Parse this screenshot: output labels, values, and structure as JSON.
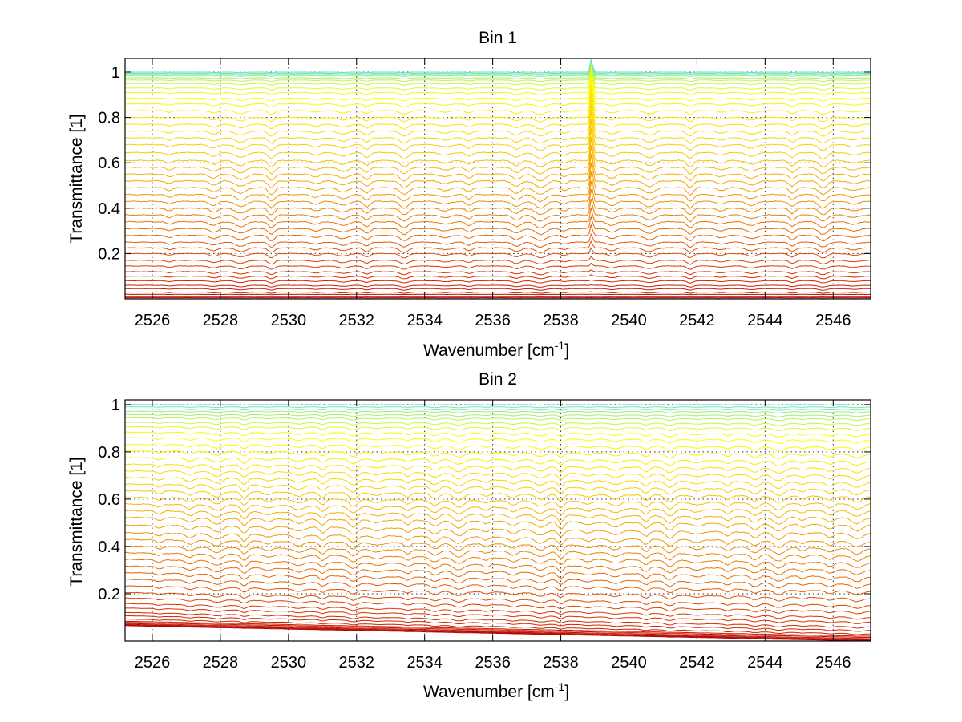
{
  "chart_data": [
    {
      "type": "line",
      "title": "Bin 1",
      "xlabel_main": "Wavenumber [cm",
      "xlabel_sup": "-1",
      "xlabel_tail": "]",
      "ylabel": "Transmittance [1]",
      "xlim": [
        2525.2,
        2547.1
      ],
      "ylim": [
        0,
        1.06
      ],
      "xticks": [
        2526,
        2528,
        2530,
        2532,
        2534,
        2536,
        2538,
        2540,
        2542,
        2544,
        2546
      ],
      "yticks": [
        0.2,
        0.4,
        0.6,
        0.8,
        1
      ],
      "ytick_labels": [
        "0.2",
        "0.4",
        "0.6",
        "0.8",
        "1"
      ],
      "grid": true,
      "legend": "none",
      "n_series": 45,
      "series_levels": [
        0.0,
        0.005,
        0.01,
        0.02,
        0.03,
        0.045,
        0.06,
        0.08,
        0.1,
        0.12,
        0.145,
        0.17,
        0.2,
        0.225,
        0.25,
        0.28,
        0.31,
        0.34,
        0.37,
        0.4,
        0.43,
        0.46,
        0.49,
        0.52,
        0.55,
        0.58,
        0.61,
        0.645,
        0.68,
        0.71,
        0.74,
        0.77,
        0.8,
        0.83,
        0.86,
        0.885,
        0.91,
        0.93,
        0.95,
        0.965,
        0.975,
        0.985,
        0.99,
        0.995,
        1.0
      ],
      "series_trend": [
        0,
        0
      ],
      "spike": {
        "x": 2538.9,
        "peak": 1.06
      },
      "absorption_lines": [
        2526.5,
        2527.8,
        2528.6,
        2529.5,
        2530.8,
        2531.6,
        2532.3,
        2533.4,
        2534.6,
        2535.3,
        2536.7,
        2537.4,
        2538.1,
        2539.5,
        2540.6,
        2541.8,
        2542.7,
        2543.6,
        2544.8,
        2545.7,
        2546.6
      ],
      "colormap": [
        "#b30000",
        "#d73000",
        "#ee7a00",
        "#f7c400",
        "#ffff00",
        "#5fe0d0"
      ]
    },
    {
      "type": "line",
      "title": "Bin 2",
      "xlabel_main": "Wavenumber [cm",
      "xlabel_sup": "-1",
      "xlabel_tail": "]",
      "ylabel": "Transmittance [1]",
      "xlim": [
        2525.2,
        2547.1
      ],
      "ylim": [
        0,
        1.02
      ],
      "xticks": [
        2526,
        2528,
        2530,
        2532,
        2534,
        2536,
        2538,
        2540,
        2542,
        2544,
        2546
      ],
      "yticks": [
        0.2,
        0.4,
        0.6,
        0.8,
        1
      ],
      "ytick_labels": [
        "0.2",
        "0.4",
        "0.6",
        "0.8",
        "1"
      ],
      "grid": true,
      "legend": "none",
      "n_series": 45,
      "series_levels": [
        0.0,
        0.003,
        0.006,
        0.01,
        0.015,
        0.02,
        0.03,
        0.045,
        0.06,
        0.08,
        0.1,
        0.125,
        0.15,
        0.18,
        0.21,
        0.24,
        0.27,
        0.3,
        0.33,
        0.36,
        0.39,
        0.42,
        0.455,
        0.49,
        0.52,
        0.55,
        0.58,
        0.61,
        0.64,
        0.67,
        0.7,
        0.73,
        0.76,
        0.79,
        0.82,
        0.85,
        0.875,
        0.9,
        0.92,
        0.94,
        0.955,
        0.97,
        0.98,
        0.99,
        1.0
      ],
      "series_trend": [
        0.065,
        0.0
      ],
      "spike": null,
      "absorption_lines": [
        2526.2,
        2527.1,
        2527.9,
        2528.7,
        2529.4,
        2530.3,
        2531.0,
        2531.9,
        2532.6,
        2533.5,
        2534.3,
        2535.0,
        2535.8,
        2536.6,
        2537.4,
        2538.0,
        2538.8,
        2539.6,
        2540.5,
        2541.2,
        2542.0,
        2542.9,
        2543.7,
        2544.4,
        2545.1,
        2545.9,
        2546.7
      ],
      "colormap": [
        "#b30000",
        "#d73000",
        "#ee7a00",
        "#f7c400",
        "#ffff00",
        "#5fe0d0"
      ]
    }
  ]
}
